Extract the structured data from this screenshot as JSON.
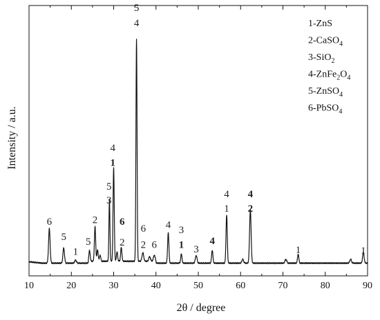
{
  "chart_data": {
    "type": "line",
    "xlabel": "2θ / degree",
    "ylabel": "Intensity / a.u.",
    "xlim": [
      10,
      90
    ],
    "x_ticks": [
      10,
      20,
      30,
      40,
      50,
      60,
      70,
      80,
      90
    ],
    "y_ticks_labeled": false,
    "grid": false,
    "legend_position": "top-right",
    "legend": [
      {
        "num": "1",
        "formula": [
          {
            "t": "ZnS"
          }
        ]
      },
      {
        "num": "2",
        "formula": [
          {
            "t": "CaSO"
          },
          {
            "t": "4",
            "sub": true
          }
        ]
      },
      {
        "num": "3",
        "formula": [
          {
            "t": "SiO"
          },
          {
            "t": "2",
            "sub": true
          }
        ]
      },
      {
        "num": "4",
        "formula": [
          {
            "t": "ZnFe"
          },
          {
            "t": "2",
            "sub": true
          },
          {
            "t": "O"
          },
          {
            "t": "4",
            "sub": true
          }
        ]
      },
      {
        "num": "5",
        "formula": [
          {
            "t": "ZnSO"
          },
          {
            "t": "4",
            "sub": true
          }
        ]
      },
      {
        "num": "6",
        "formula": [
          {
            "t": "PbSO"
          },
          {
            "t": "4",
            "sub": true
          }
        ]
      }
    ],
    "series": [
      {
        "baseline": 4,
        "peaks": [
          {
            "x": 14.8,
            "h": 45,
            "w": 0.18
          },
          {
            "x": 18.2,
            "h": 20,
            "w": 0.18
          },
          {
            "x": 21.0,
            "h": 4,
            "w": 0.2
          },
          {
            "x": 24.3,
            "h": 14,
            "w": 0.15
          },
          {
            "x": 25.6,
            "h": 45,
            "w": 0.15
          },
          {
            "x": 26.2,
            "h": 15,
            "w": 0.15
          },
          {
            "x": 26.8,
            "h": 8,
            "w": 0.15
          },
          {
            "x": 29.0,
            "h": 80,
            "w": 0.12
          },
          {
            "x": 30.0,
            "h": 122,
            "w": 0.14
          },
          {
            "x": 30.8,
            "h": 12,
            "w": 0.15
          },
          {
            "x": 31.8,
            "h": 18,
            "w": 0.15
          },
          {
            "x": 35.4,
            "h": 290,
            "w": 0.13
          },
          {
            "x": 36.9,
            "h": 11,
            "w": 0.2
          },
          {
            "x": 38.5,
            "h": 6,
            "w": 0.2
          },
          {
            "x": 39.6,
            "h": 8,
            "w": 0.2
          },
          {
            "x": 42.9,
            "h": 40,
            "w": 0.15
          },
          {
            "x": 46.0,
            "h": 12,
            "w": 0.15
          },
          {
            "x": 49.5,
            "h": 10,
            "w": 0.2
          },
          {
            "x": 53.3,
            "h": 17,
            "w": 0.15
          },
          {
            "x": 56.7,
            "h": 63,
            "w": 0.15
          },
          {
            "x": 60.5,
            "h": 5,
            "w": 0.2
          },
          {
            "x": 62.3,
            "h": 70,
            "w": 0.18
          },
          {
            "x": 70.7,
            "h": 5,
            "w": 0.2
          },
          {
            "x": 73.6,
            "h": 12,
            "w": 0.15
          },
          {
            "x": 86.0,
            "h": 5,
            "w": 0.2
          },
          {
            "x": 89.0,
            "h": 14,
            "w": 0.18
          }
        ]
      }
    ],
    "annotations": [
      {
        "x": 14.8,
        "y": 54,
        "text": "6",
        "bold": false
      },
      {
        "x": 18.2,
        "y": 34,
        "text": "5",
        "bold": false
      },
      {
        "x": 21.0,
        "y": 15,
        "text": "1",
        "bold": false,
        "color": "#3b5f8a"
      },
      {
        "x": 24.0,
        "y": 28,
        "text": "5",
        "bold": false
      },
      {
        "x": 25.6,
        "y": 56,
        "text": "2",
        "bold": false
      },
      {
        "x": 28.9,
        "y": 100,
        "text": "5",
        "bold": false
      },
      {
        "x": 28.9,
        "y": 82,
        "text": "3",
        "bold": false
      },
      {
        "x": 29.8,
        "y": 150,
        "text": "4",
        "bold": false
      },
      {
        "x": 29.8,
        "y": 131,
        "text": "1",
        "bold": true
      },
      {
        "x": 32.0,
        "y": 54,
        "text": "6",
        "bold": true
      },
      {
        "x": 32.0,
        "y": 27,
        "text": "2",
        "bold": false
      },
      {
        "x": 35.4,
        "y": 333,
        "text": "5",
        "bold": false
      },
      {
        "x": 35.4,
        "y": 313,
        "text": "4",
        "bold": false
      },
      {
        "x": 37.0,
        "y": 45,
        "text": "6",
        "bold": false
      },
      {
        "x": 37.0,
        "y": 24,
        "text": "2",
        "bold": false
      },
      {
        "x": 39.6,
        "y": 24,
        "text": "6",
        "bold": false
      },
      {
        "x": 42.9,
        "y": 50,
        "text": "4",
        "bold": false
      },
      {
        "x": 46.0,
        "y": 43,
        "text": "3",
        "bold": false
      },
      {
        "x": 46.0,
        "y": 24,
        "text": "1",
        "bold": true
      },
      {
        "x": 49.5,
        "y": 18,
        "text": "3",
        "bold": false
      },
      {
        "x": 53.3,
        "y": 29,
        "text": "4",
        "bold": true
      },
      {
        "x": 56.7,
        "y": 90,
        "text": "4",
        "bold": false
      },
      {
        "x": 56.7,
        "y": 71,
        "text": "1",
        "bold": false
      },
      {
        "x": 62.3,
        "y": 90,
        "text": "4",
        "bold": true
      },
      {
        "x": 62.3,
        "y": 71,
        "text": "2",
        "bold": true
      },
      {
        "x": 73.6,
        "y": 17,
        "text": "1",
        "bold": false,
        "color": "#3b5f8a"
      },
      {
        "x": 89.0,
        "y": 16,
        "text": "1",
        "bold": false
      }
    ]
  }
}
